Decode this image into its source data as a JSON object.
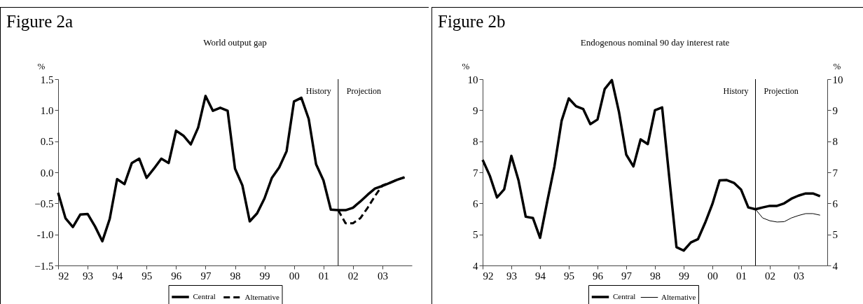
{
  "chart_data": [
    {
      "type": "line",
      "title": "Figure 2a",
      "subtitle": "World output gap",
      "ylabel": "%",
      "x": [
        1992,
        1992.25,
        1992.5,
        1992.75,
        1993,
        1993.25,
        1993.5,
        1993.75,
        1994,
        1994.25,
        1994.5,
        1994.75,
        1995,
        1995.25,
        1995.5,
        1995.75,
        1996,
        1996.25,
        1996.5,
        1996.75,
        1997,
        1997.25,
        1997.5,
        1997.75,
        1998,
        1998.25,
        1998.5,
        1998.75,
        1999,
        1999.25,
        1999.5,
        1999.75,
        2000,
        2000.25,
        2000.5,
        2000.75,
        2001,
        2001.25,
        2001.5,
        2001.75,
        2002,
        2002.25,
        2002.5,
        2002.75,
        2003,
        2003.25,
        2003.5,
        2003.75
      ],
      "series": [
        {
          "name": "Central",
          "color": "#000000",
          "line_style": "solid",
          "values": [
            -0.33,
            -0.74,
            -0.88,
            -0.68,
            -0.67,
            -0.87,
            -1.11,
            -0.75,
            -0.11,
            -0.19,
            0.15,
            0.22,
            -0.09,
            0.06,
            0.22,
            0.15,
            0.67,
            0.59,
            0.45,
            0.72,
            1.23,
            0.99,
            1.04,
            0.99,
            0.06,
            -0.21,
            -0.79,
            -0.66,
            -0.42,
            -0.09,
            0.08,
            0.34,
            1.14,
            1.2,
            0.86,
            0.13,
            -0.13,
            -0.6,
            -0.61,
            -0.61,
            -0.57,
            -0.47,
            -0.36,
            -0.26,
            -0.22,
            -0.17,
            -0.12,
            -0.08
          ]
        },
        {
          "name": "Alternative",
          "color": "#000000",
          "line_style": "dashed",
          "x": [
            2001.5,
            2001.75,
            2002,
            2002.25,
            2002.5,
            2002.75,
            2003,
            2003.25,
            2003.5,
            2003.75
          ],
          "values": [
            -0.61,
            -0.82,
            -0.82,
            -0.74,
            -0.57,
            -0.38,
            -0.21,
            -0.17,
            -0.12,
            -0.08
          ]
        }
      ],
      "xlim": [
        1992,
        2004
      ],
      "xticks": [
        {
          "value": 1992,
          "label": "92"
        },
        {
          "value": 1993,
          "label": "93"
        },
        {
          "value": 1994,
          "label": "94"
        },
        {
          "value": 1995,
          "label": "95"
        },
        {
          "value": 1996,
          "label": "96"
        },
        {
          "value": 1997,
          "label": "97"
        },
        {
          "value": 1998,
          "label": "98"
        },
        {
          "value": 1999,
          "label": "99"
        },
        {
          "value": 2000,
          "label": "00"
        },
        {
          "value": 2001,
          "label": "01"
        },
        {
          "value": 2002,
          "label": "02"
        },
        {
          "value": 2003,
          "label": "03"
        }
      ],
      "ylim": [
        -1.5,
        1.5
      ],
      "yticks": [
        -1.5,
        {
          "value": -1,
          "label": "-1.0"
        },
        -0.5,
        {
          "value": 0,
          "label": "0.0"
        },
        0.5,
        {
          "value": 1,
          "label": "1.0"
        },
        1.5
      ],
      "ref_lines": [
        {
          "axis": "x",
          "value": 2001.5,
          "color": "#000000"
        }
      ],
      "annotations": [
        "History",
        "Projection"
      ],
      "legend": "bottom"
    },
    {
      "type": "line",
      "title": "Figure 2b",
      "subtitle": "Endogenous nominal 90 day interest rate",
      "ylabel": "%",
      "y2label": "%",
      "x": [
        1992,
        1992.25,
        1992.5,
        1992.75,
        1993,
        1993.25,
        1993.5,
        1993.75,
        1994,
        1994.25,
        1994.5,
        1994.75,
        1995,
        1995.25,
        1995.5,
        1995.75,
        1996,
        1996.25,
        1996.5,
        1996.75,
        1997,
        1997.25,
        1997.5,
        1997.75,
        1998,
        1998.25,
        1998.5,
        1998.75,
        1999,
        1999.25,
        1999.5,
        1999.75,
        2000,
        2000.25,
        2000.5,
        2000.75,
        2001,
        2001.25,
        2001.5,
        2001.75,
        2002,
        2002.25,
        2002.5,
        2002.75,
        2003,
        2003.25,
        2003.5,
        2003.75
      ],
      "series": [
        {
          "name": "Central",
          "color": "#000000",
          "line_style": "solid",
          "values": [
            7.4,
            6.89,
            6.19,
            6.45,
            7.53,
            6.74,
            5.57,
            5.53,
            4.89,
            6.06,
            7.19,
            8.66,
            9.38,
            9.13,
            9.04,
            8.55,
            8.7,
            9.68,
            9.97,
            8.93,
            7.57,
            7.19,
            8.06,
            7.91,
            9.0,
            9.09,
            6.82,
            4.59,
            4.48,
            4.74,
            4.85,
            5.38,
            5.98,
            6.74,
            6.75,
            6.66,
            6.44,
            5.87,
            5.81,
            5.87,
            5.92,
            5.92,
            6.0,
            6.15,
            6.25,
            6.32,
            6.32,
            6.23
          ]
        },
        {
          "name": "Alternative",
          "color": "#000000",
          "line_style": "solid",
          "x": [
            2001.5,
            2001.75,
            2002,
            2002.25,
            2002.5,
            2002.75,
            2003,
            2003.25,
            2003.5,
            2003.75
          ],
          "values": [
            5.81,
            5.53,
            5.44,
            5.4,
            5.41,
            5.53,
            5.61,
            5.67,
            5.67,
            5.62
          ]
        }
      ],
      "xlim": [
        1992,
        2004
      ],
      "xticks": [
        {
          "value": 1992,
          "label": "92"
        },
        {
          "value": 1993,
          "label": "93"
        },
        {
          "value": 1994,
          "label": "94"
        },
        {
          "value": 1995,
          "label": "95"
        },
        {
          "value": 1996,
          "label": "96"
        },
        {
          "value": 1997,
          "label": "97"
        },
        {
          "value": 1998,
          "label": "98"
        },
        {
          "value": 1999,
          "label": "99"
        },
        {
          "value": 2000,
          "label": "00"
        },
        {
          "value": 2001,
          "label": "01"
        },
        {
          "value": 2002,
          "label": "02"
        },
        {
          "value": 2003,
          "label": "03"
        }
      ],
      "ylim": [
        4,
        10
      ],
      "yticks": [
        4,
        5,
        6,
        7,
        8,
        9,
        10
      ],
      "y2lim": [
        4,
        10
      ],
      "y2ticks": [
        4,
        5,
        6,
        7,
        8,
        9,
        10
      ],
      "ref_lines": [
        {
          "axis": "x",
          "value": 2001.5,
          "color": "#000000"
        }
      ],
      "annotations": [
        "History",
        "Projection"
      ],
      "legend": "bottom"
    }
  ]
}
